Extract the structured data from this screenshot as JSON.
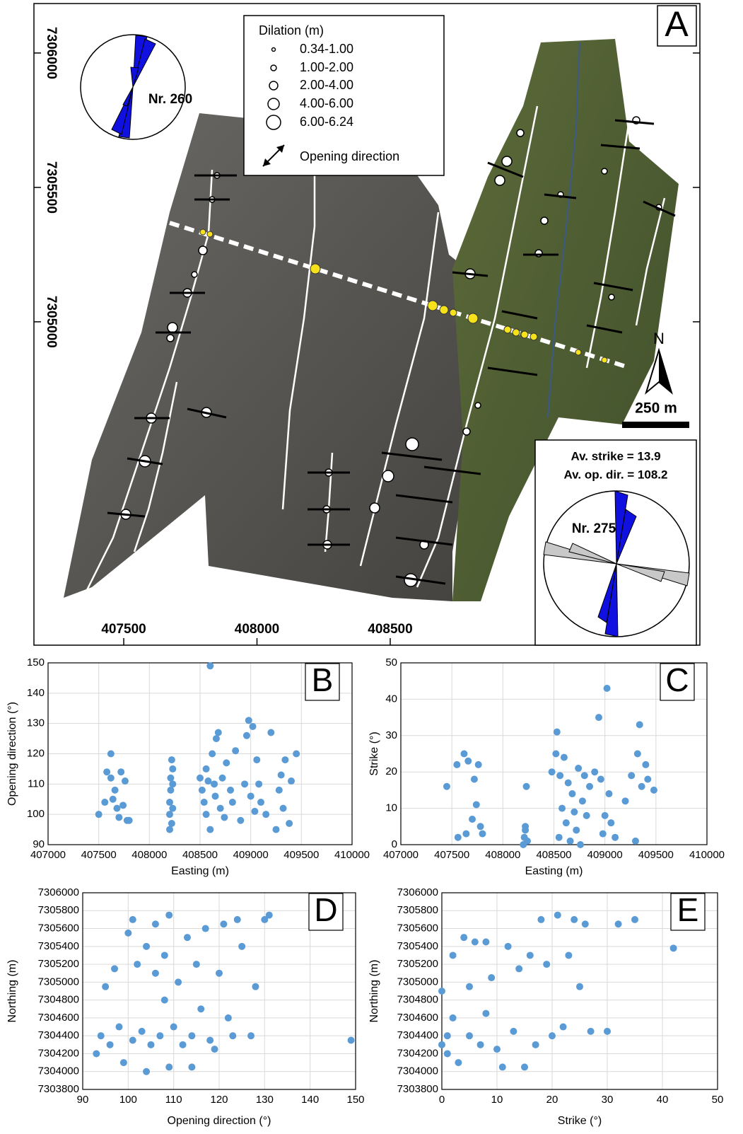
{
  "chart_data": [
    {
      "type": "map",
      "panel_label": "A",
      "xlim": [
        407163,
        409662
      ],
      "ylim": [
        7303797,
        7306184
      ],
      "xticks": [
        407500,
        408000,
        408500
      ],
      "yticks": [
        7305000,
        7305500,
        7306000
      ],
      "legend": {
        "title": "Dilation (m)",
        "entries": [
          "0.34-1.00",
          "1.00-2.00",
          "2.00-4.00",
          "4.00-6.00",
          "6.00-6.24"
        ],
        "arrow_label": "Opening direction"
      },
      "rose_top": {
        "label": "Nr. 260"
      },
      "rose_bottom": {
        "label": "Nr. 275",
        "strike": "Av. strike = 13.9",
        "opening": "Av. op. dir. = 108.2"
      },
      "north": "N",
      "scale": "250 m"
    },
    {
      "type": "scatter",
      "panel_label": "B",
      "xlabel": "Easting (m)",
      "ylabel": "Opening direction (°)",
      "color": "#5b9bd5",
      "grid": true,
      "xlim": [
        407000,
        410000
      ],
      "xticks": [
        407000,
        407500,
        408000,
        408500,
        409000,
        409500,
        410000
      ],
      "ylim": [
        90,
        150
      ],
      "yticks": [
        90,
        100,
        110,
        120,
        130,
        140,
        150
      ],
      "x": [
        407500,
        407560,
        407580,
        407620,
        407620,
        407640,
        407660,
        407680,
        407700,
        407720,
        407740,
        407760,
        407780,
        407800,
        408200,
        408200,
        408200,
        408210,
        408210,
        408220,
        408220,
        408230,
        408230,
        408230,
        408500,
        408520,
        408540,
        408560,
        408560,
        408580,
        408600,
        408600,
        408620,
        408640,
        408650,
        408660,
        408680,
        408700,
        408720,
        408740,
        408760,
        408800,
        408820,
        408850,
        408900,
        408940,
        408960,
        408980,
        409000,
        409020,
        409040,
        409060,
        409080,
        409100,
        409150,
        409200,
        409250,
        409280,
        409300,
        409320,
        409340,
        409380,
        409400,
        409450
      ],
      "values": [
        100,
        104,
        114,
        120,
        112,
        105,
        108,
        102,
        99,
        114,
        103,
        111,
        98,
        98,
        95,
        100,
        104,
        108,
        112,
        118,
        97,
        102,
        110,
        115,
        112,
        108,
        104,
        115,
        100,
        111,
        149,
        95,
        120,
        110,
        106,
        125,
        127,
        102,
        112,
        99,
        117,
        108,
        104,
        121,
        98,
        110,
        126,
        131,
        106,
        129,
        101,
        118,
        110,
        104,
        100,
        127,
        95,
        108,
        113,
        102,
        118,
        97,
        111,
        120
      ]
    },
    {
      "type": "scatter",
      "panel_label": "C",
      "xlabel": "Easting (m)",
      "ylabel": "Strike (°)",
      "color": "#5b9bd5",
      "grid": true,
      "xlim": [
        407000,
        410000
      ],
      "xticks": [
        407000,
        407500,
        408000,
        408500,
        409000,
        409500,
        410000
      ],
      "ylim": [
        0,
        50
      ],
      "yticks": [
        0,
        10,
        20,
        30,
        40,
        50
      ],
      "x": [
        407450,
        407550,
        407560,
        407620,
        407640,
        407660,
        407700,
        407720,
        407740,
        407760,
        407780,
        407800,
        408200,
        408210,
        408220,
        408230,
        408240,
        408220,
        408480,
        408520,
        408530,
        408550,
        408560,
        408580,
        408600,
        408620,
        408640,
        408660,
        408680,
        408700,
        408720,
        408740,
        408760,
        408780,
        408800,
        408820,
        408850,
        408900,
        408940,
        408960,
        408980,
        409000,
        409020,
        409040,
        409060,
        409100,
        409200,
        409260,
        409300,
        409320,
        409340,
        409360,
        409400,
        409420,
        409480
      ],
      "values": [
        16,
        22,
        2,
        25,
        3,
        23,
        7,
        18,
        11,
        22,
        5,
        3,
        0,
        2,
        4,
        16,
        1,
        5,
        20,
        25,
        31,
        2,
        19,
        10,
        24,
        6,
        17,
        1,
        14,
        9,
        4,
        21,
        0,
        12,
        19,
        8,
        16,
        20,
        35,
        18,
        3,
        8,
        43,
        14,
        6,
        2,
        12,
        19,
        1,
        25,
        33,
        16,
        22,
        18,
        15
      ]
    },
    {
      "type": "scatter",
      "panel_label": "D",
      "xlabel": "Opening direction (°)",
      "ylabel": "Northing (m)",
      "color": "#5b9bd5",
      "grid": true,
      "xlim": [
        90,
        150
      ],
      "xticks": [
        90,
        100,
        110,
        120,
        130,
        140,
        150
      ],
      "ylim": [
        7303800,
        7306000
      ],
      "yticks": [
        7303800,
        7304000,
        7304200,
        7304400,
        7304600,
        7304800,
        7305000,
        7305200,
        7305400,
        7305600,
        7305800,
        7306000
      ],
      "x": [
        93,
        94,
        95,
        96,
        97,
        98,
        99,
        100,
        101,
        101,
        102,
        103,
        104,
        104,
        105,
        106,
        106,
        107,
        108,
        108,
        109,
        109,
        110,
        111,
        112,
        113,
        114,
        114,
        115,
        116,
        117,
        118,
        119,
        120,
        121,
        122,
        123,
        124,
        125,
        127,
        128,
        130,
        131,
        149
      ],
      "values": [
        7304200,
        7304400,
        7304950,
        7304300,
        7305150,
        7304500,
        7304100,
        7305550,
        7304350,
        7305700,
        7305200,
        7304450,
        7304000,
        7305400,
        7304300,
        7305100,
        7305650,
        7304400,
        7304800,
        7305300,
        7304050,
        7305750,
        7304500,
        7305000,
        7304300,
        7305500,
        7304400,
        7304050,
        7305200,
        7304700,
        7305600,
        7304350,
        7304250,
        7305100,
        7305650,
        7304600,
        7304400,
        7305700,
        7305400,
        7304400,
        7304950,
        7305700,
        7305750,
        7304350
      ]
    },
    {
      "type": "scatter",
      "panel_label": "E",
      "xlabel": "Strike (°)",
      "ylabel": "Northing (m)",
      "color": "#5b9bd5",
      "grid": true,
      "xlim": [
        0,
        50
      ],
      "xticks": [
        0,
        10,
        20,
        30,
        40,
        50
      ],
      "ylim": [
        7303800,
        7306000
      ],
      "yticks": [
        7303800,
        7304000,
        7304200,
        7304400,
        7304600,
        7304800,
        7305000,
        7305200,
        7305400,
        7305600,
        7305800,
        7306000
      ],
      "x": [
        0,
        0,
        1,
        1,
        2,
        2,
        3,
        4,
        5,
        5,
        6,
        7,
        8,
        8,
        9,
        10,
        11,
        12,
        13,
        14,
        15,
        16,
        17,
        18,
        19,
        20,
        21,
        22,
        23,
        24,
        25,
        26,
        27,
        30,
        32,
        35,
        42
      ],
      "values": [
        7304900,
        7304300,
        7304400,
        7304200,
        7304600,
        7305300,
        7304100,
        7305500,
        7304950,
        7304400,
        7305450,
        7304300,
        7304650,
        7305450,
        7305050,
        7304250,
        7304050,
        7305400,
        7304450,
        7305150,
        7304050,
        7305300,
        7304300,
        7305700,
        7305200,
        7304400,
        7305750,
        7304500,
        7305300,
        7305700,
        7304950,
        7305650,
        7304450,
        7304450,
        7305650,
        7305700,
        7305380
      ]
    }
  ]
}
